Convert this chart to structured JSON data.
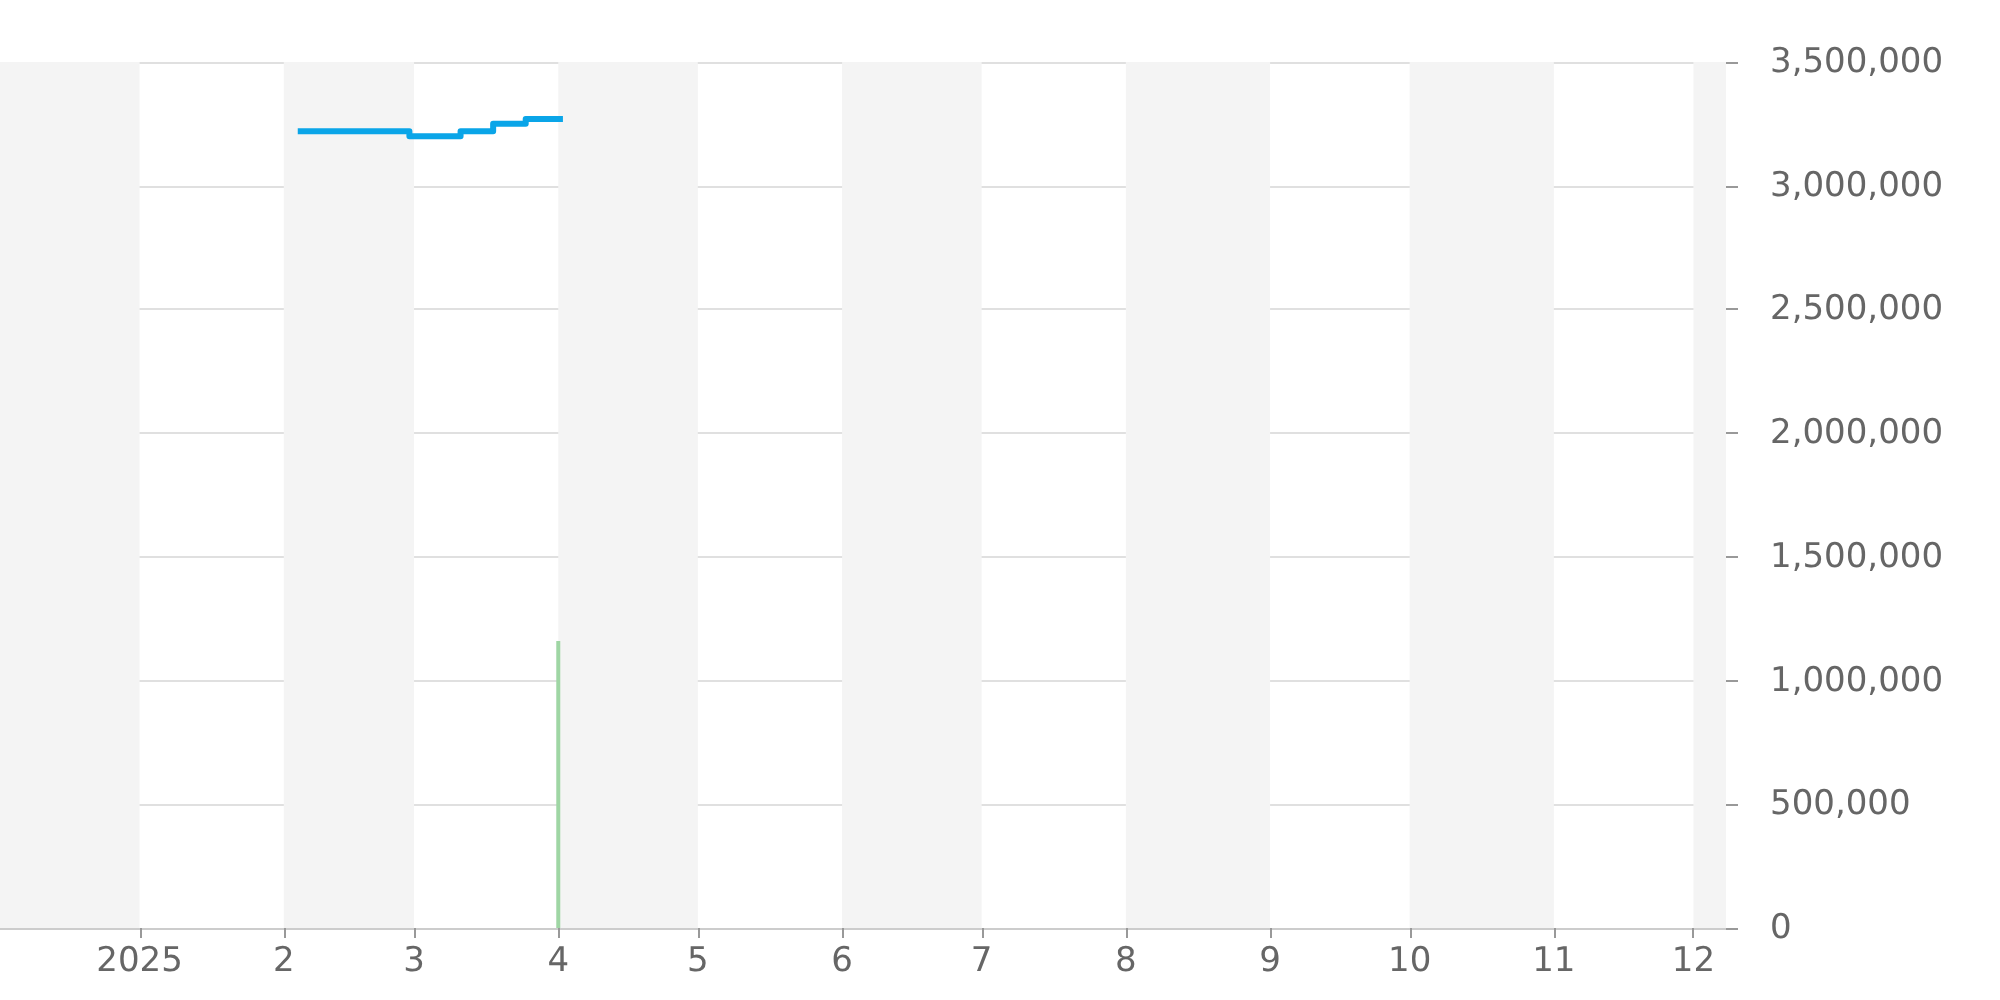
{
  "chart_data": {
    "type": "step",
    "series": [
      {
        "color": "#0aa5e8",
        "x": [
          "2025-02-04",
          "2025-02-28",
          "2025-03-11",
          "2025-03-18",
          "2025-03-25",
          "2025-04-02"
        ],
        "values": [
          3220000,
          3200000,
          3220000,
          3250000,
          3270000,
          3270000
        ]
      },
      {
        "type": "bar",
        "color": "#9fd6a4",
        "x": [
          "2025-04-01"
        ],
        "values": [
          1160000
        ]
      }
    ],
    "xlim": [
      "2024-12-02",
      "2025-12-08"
    ],
    "xticks": [
      {
        "value": "2025-01-01",
        "label": "2025"
      },
      {
        "value": "2025-02-01",
        "label": "2"
      },
      {
        "value": "2025-03-01",
        "label": "3"
      },
      {
        "value": "2025-04-01",
        "label": "4"
      },
      {
        "value": "2025-05-01",
        "label": "5"
      },
      {
        "value": "2025-06-01",
        "label": "6"
      },
      {
        "value": "2025-07-01",
        "label": "7"
      },
      {
        "value": "2025-08-01",
        "label": "8"
      },
      {
        "value": "2025-09-01",
        "label": "9"
      },
      {
        "value": "2025-10-01",
        "label": "10"
      },
      {
        "value": "2025-11-01",
        "label": "11"
      },
      {
        "value": "2025-12-01",
        "label": "12"
      }
    ],
    "ylim": [
      0,
      3500000
    ],
    "yticks": [
      {
        "value": 0,
        "label": "0"
      },
      {
        "value": 500000,
        "label": "500,000"
      },
      {
        "value": 1000000,
        "label": "1,000,000"
      },
      {
        "value": 1500000,
        "label": "1,500,000"
      },
      {
        "value": 2000000,
        "label": "2,000,000"
      },
      {
        "value": 2500000,
        "label": "2,500,000"
      },
      {
        "value": 3000000,
        "label": "3,000,000"
      },
      {
        "value": 3500000,
        "label": "3,500,000"
      }
    ],
    "bands": [
      {
        "axis": "x",
        "from": "2024-12-02",
        "to": "2025-01-01",
        "color": "#f4f4f4"
      },
      {
        "axis": "x",
        "from": "2025-02-01",
        "to": "2025-03-01",
        "color": "#f4f4f4"
      },
      {
        "axis": "x",
        "from": "2025-04-01",
        "to": "2025-05-01",
        "color": "#f4f4f4"
      },
      {
        "axis": "x",
        "from": "2025-06-01",
        "to": "2025-07-01",
        "color": "#f4f4f4"
      },
      {
        "axis": "x",
        "from": "2025-08-01",
        "to": "2025-09-01",
        "color": "#f4f4f4"
      },
      {
        "axis": "x",
        "from": "2025-10-01",
        "to": "2025-11-01",
        "color": "#f4f4f4"
      },
      {
        "axis": "x",
        "from": "2025-12-01",
        "to": "2025-12-08",
        "color": "#f4f4f4"
      }
    ],
    "grid": "y"
  }
}
